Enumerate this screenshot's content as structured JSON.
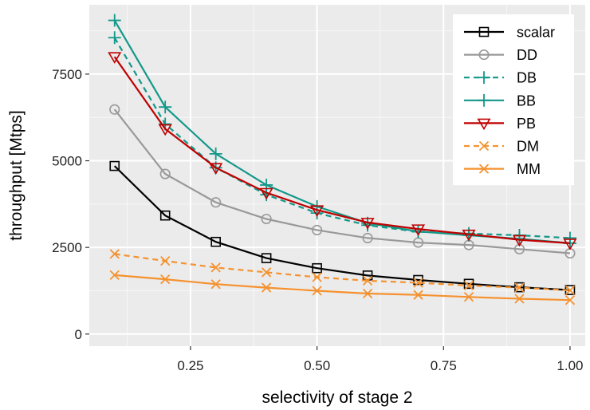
{
  "chart_data": {
    "type": "line",
    "xlabel": "selectivity of stage 2",
    "ylabel": "throughput [Mtps]",
    "xlim": [
      0.05,
      1.03
    ],
    "ylim": [
      -350,
      9500
    ],
    "xticks": [
      0.25,
      0.5,
      0.75,
      1.0
    ],
    "xtick_labels": [
      "0.25",
      "0.50",
      "0.75",
      "1.00"
    ],
    "yticks": [
      0,
      2500,
      5000,
      7500
    ],
    "ytick_labels": [
      "0",
      "2500",
      "5000",
      "7500"
    ],
    "grid": true,
    "legend_position": "top-right",
    "x": [
      0.1,
      0.2,
      0.3,
      0.4,
      0.5,
      0.6,
      0.7,
      0.8,
      0.9,
      1.0
    ],
    "series": [
      {
        "name": "scalar",
        "color": "#000000",
        "dash": "solid",
        "marker": "square",
        "values": [
          4850,
          3420,
          2660,
          2190,
          1900,
          1690,
          1560,
          1450,
          1350,
          1270
        ]
      },
      {
        "name": "DD",
        "color": "#999999",
        "dash": "solid",
        "marker": "circle",
        "values": [
          6480,
          4620,
          3800,
          3320,
          3000,
          2770,
          2640,
          2570,
          2450,
          2330
        ]
      },
      {
        "name": "DB",
        "color": "#139889",
        "dash": "dashed",
        "marker": "plus",
        "values": [
          8550,
          6060,
          4800,
          4020,
          3490,
          3140,
          2950,
          2900,
          2850,
          2770
        ]
      },
      {
        "name": "BB",
        "color": "#139889",
        "dash": "solid",
        "marker": "plus",
        "values": [
          9050,
          6550,
          5200,
          4300,
          3680,
          3200,
          2960,
          2850,
          2750,
          2620
        ]
      },
      {
        "name": "PB",
        "color": "#c00000",
        "dash": "solid",
        "marker": "triangle-down",
        "values": [
          8000,
          5920,
          4800,
          4080,
          3580,
          3220,
          3030,
          2880,
          2720,
          2620
        ]
      },
      {
        "name": "DM",
        "color": "#f5922f",
        "dash": "dashed",
        "marker": "x",
        "values": [
          2310,
          2110,
          1920,
          1780,
          1640,
          1540,
          1480,
          1400,
          1340,
          1260
        ]
      },
      {
        "name": "MM",
        "color": "#f5922f",
        "dash": "solid",
        "marker": "x",
        "values": [
          1700,
          1580,
          1440,
          1340,
          1250,
          1170,
          1130,
          1070,
          1020,
          980
        ]
      }
    ]
  }
}
